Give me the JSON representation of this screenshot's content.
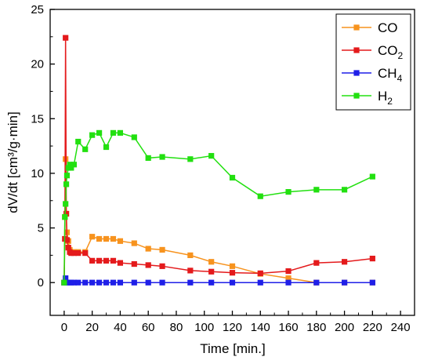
{
  "chart_data": {
    "type": "line",
    "xlabel": "Time [min.]",
    "ylabel": "dV/dt [cm³/g·min]",
    "xlim": [
      -10,
      250
    ],
    "ylim": [
      -3,
      25
    ],
    "xticks": [
      "0",
      "20",
      "40",
      "60",
      "80",
      "100",
      "120",
      "140",
      "160",
      "180",
      "200",
      "220",
      "240"
    ],
    "yticks": [
      "0",
      "5",
      "10",
      "15",
      "20",
      "25"
    ],
    "grid": false,
    "legend_position": "top-right",
    "legend": [
      {
        "key": "co",
        "label": "CO",
        "sub": ""
      },
      {
        "key": "co2",
        "label": "CO",
        "sub": "2"
      },
      {
        "key": "ch4",
        "label": "CH",
        "sub": "4"
      },
      {
        "key": "h2",
        "label": "H",
        "sub": "2"
      }
    ],
    "series": [
      {
        "key": "co",
        "name": "CO",
        "color": "#F7931E",
        "points": [
          [
            0,
            0
          ],
          [
            0.5,
            6.0
          ],
          [
            1,
            11.3
          ],
          [
            1.5,
            6.3
          ],
          [
            2,
            4.6
          ],
          [
            3,
            3.8
          ],
          [
            4,
            3.0
          ],
          [
            5,
            2.8
          ],
          [
            7,
            2.8
          ],
          [
            10,
            2.8
          ],
          [
            15,
            2.8
          ],
          [
            20,
            4.2
          ],
          [
            25,
            4.0
          ],
          [
            30,
            4.0
          ],
          [
            35,
            4.0
          ],
          [
            40,
            3.8
          ],
          [
            50,
            3.6
          ],
          [
            60,
            3.1
          ],
          [
            70,
            3.0
          ],
          [
            90,
            2.5
          ],
          [
            105,
            1.9
          ],
          [
            120,
            1.5
          ],
          [
            140,
            0.8
          ],
          [
            160,
            0.4
          ],
          [
            180,
            0.0
          ],
          [
            200,
            0.0
          ],
          [
            220,
            0.0
          ]
        ]
      },
      {
        "key": "co2",
        "name": "CO2",
        "color": "#E41A1C",
        "points": [
          [
            0,
            0
          ],
          [
            0.5,
            4.0
          ],
          [
            1,
            22.4
          ],
          [
            1.5,
            6.3
          ],
          [
            2,
            3.9
          ],
          [
            3,
            3.2
          ],
          [
            4,
            2.8
          ],
          [
            5,
            2.7
          ],
          [
            7,
            2.7
          ],
          [
            10,
            2.7
          ],
          [
            15,
            2.7
          ],
          [
            20,
            2.0
          ],
          [
            25,
            2.0
          ],
          [
            30,
            2.0
          ],
          [
            35,
            2.0
          ],
          [
            40,
            1.8
          ],
          [
            50,
            1.7
          ],
          [
            60,
            1.6
          ],
          [
            70,
            1.5
          ],
          [
            90,
            1.1
          ],
          [
            105,
            1.0
          ],
          [
            120,
            0.9
          ],
          [
            140,
            0.85
          ],
          [
            160,
            1.05
          ],
          [
            180,
            1.8
          ],
          [
            200,
            1.9
          ],
          [
            220,
            2.2
          ]
        ]
      },
      {
        "key": "ch4",
        "name": "CH4",
        "color": "#1F1FE8",
        "points": [
          [
            0,
            0
          ],
          [
            1,
            0.4
          ],
          [
            2,
            0
          ],
          [
            3,
            0
          ],
          [
            5,
            0
          ],
          [
            7,
            0
          ],
          [
            10,
            0
          ],
          [
            15,
            0
          ],
          [
            20,
            0
          ],
          [
            25,
            0
          ],
          [
            30,
            0
          ],
          [
            35,
            0
          ],
          [
            40,
            0
          ],
          [
            50,
            0
          ],
          [
            60,
            0
          ],
          [
            70,
            0
          ],
          [
            90,
            0
          ],
          [
            105,
            0
          ],
          [
            120,
            0
          ],
          [
            140,
            0
          ],
          [
            160,
            0
          ],
          [
            180,
            0
          ],
          [
            200,
            0
          ],
          [
            220,
            0
          ]
        ]
      },
      {
        "key": "h2",
        "name": "H2",
        "color": "#22E010",
        "points": [
          [
            0,
            0
          ],
          [
            0.5,
            6.0
          ],
          [
            1,
            7.2
          ],
          [
            1.5,
            9.0
          ],
          [
            2,
            9.8
          ],
          [
            3,
            10.5
          ],
          [
            4,
            10.8
          ],
          [
            5,
            10.5
          ],
          [
            7,
            10.8
          ],
          [
            10,
            12.9
          ],
          [
            15,
            12.2
          ],
          [
            20,
            13.5
          ],
          [
            25,
            13.7
          ],
          [
            30,
            12.4
          ],
          [
            35,
            13.7
          ],
          [
            40,
            13.7
          ],
          [
            50,
            13.3
          ],
          [
            60,
            11.4
          ],
          [
            70,
            11.5
          ],
          [
            90,
            11.3
          ],
          [
            105,
            11.6
          ],
          [
            120,
            9.6
          ],
          [
            140,
            7.9
          ],
          [
            160,
            8.3
          ],
          [
            180,
            8.5
          ],
          [
            200,
            8.5
          ],
          [
            220,
            9.7
          ]
        ]
      }
    ]
  }
}
